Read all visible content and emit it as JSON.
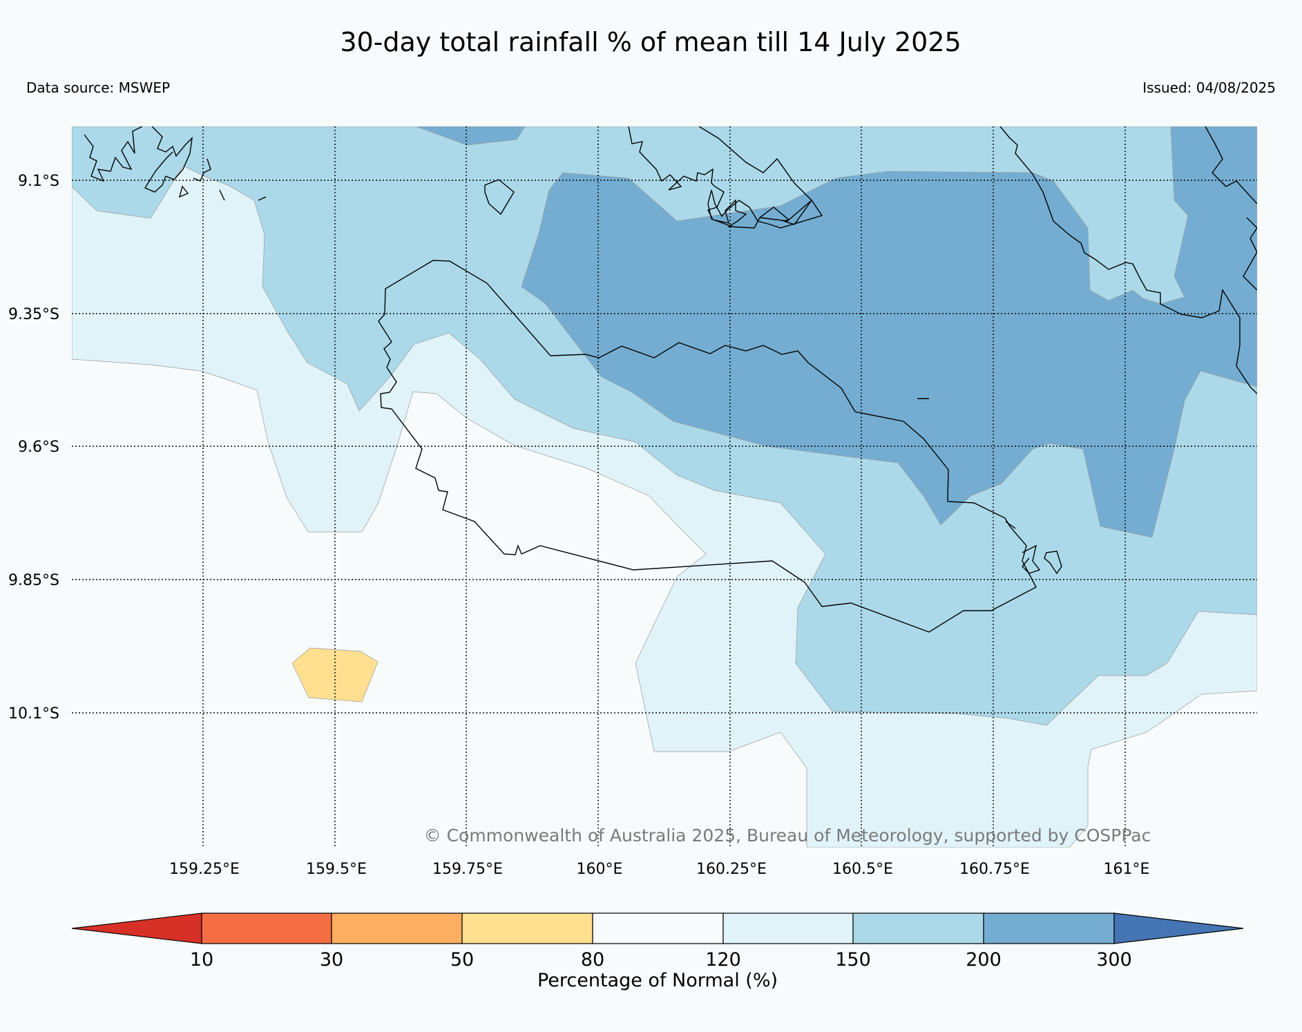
{
  "title": "30-day total rainfall % of mean till 14 July 2025",
  "data_source": "Data source: MSWEP",
  "issued": "Issued: 04/08/2025",
  "credit": "© Commonwealth of Australia 2025, Bureau of Meteorology, supported by COSPPac",
  "map": {
    "lat_labels": [
      "9.1°S",
      "9.35°S",
      "9.6°S",
      "9.85°S",
      "10.1°S"
    ],
    "lon_labels": [
      "159.25°E",
      "159.5°E",
      "159.75°E",
      "160°E",
      "160.25°E",
      "160.5°E",
      "160.75°E",
      "161°E"
    ],
    "gridlines": "dotted"
  },
  "colorbar": {
    "label": "Percentage of Normal (%)",
    "ticks": [
      "10",
      "30",
      "50",
      "80",
      "120",
      "150",
      "200",
      "300"
    ],
    "bins": [
      {
        "range": "<10",
        "color": "#d73027"
      },
      {
        "range": "10-30",
        "color": "#f46d43"
      },
      {
        "range": "30-50",
        "color": "#fdae61"
      },
      {
        "range": "50-80",
        "color": "#fee090"
      },
      {
        "range": "80-120",
        "color": "#f7fbfc"
      },
      {
        "range": "120-150",
        "color": "#e0f3f8"
      },
      {
        "range": "150-200",
        "color": "#abd9e9"
      },
      {
        "range": "200-300",
        "color": "#74add1"
      },
      {
        "range": ">300",
        "color": "#4575b4"
      }
    ]
  }
}
